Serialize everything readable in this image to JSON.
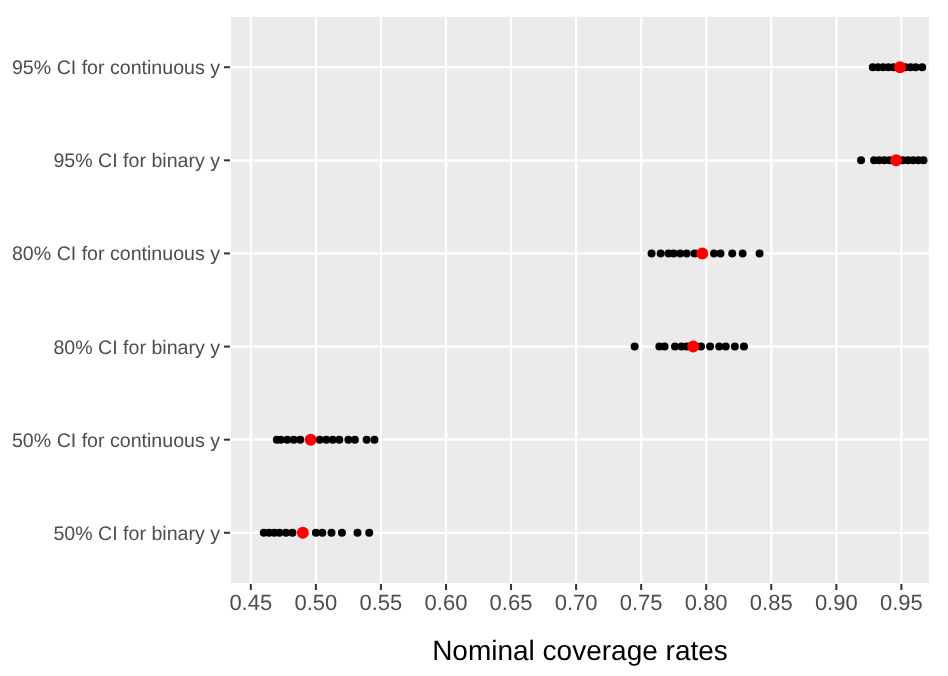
{
  "chart_data": {
    "type": "scatter",
    "orientation": "horizontal",
    "xlabel": "Nominal coverage rates",
    "categories": [
      "95% CI for continuous y",
      "95% CI for binary y",
      "80% CI for continuous y",
      "80% CI for binary y",
      "50% CI for continuous y",
      "50% CI for binary y"
    ],
    "series": [
      {
        "color": "#000000",
        "x": [
          "95% CI for continuous y",
          "95% CI for continuous y",
          "95% CI for continuous y",
          "95% CI for continuous y",
          "95% CI for continuous y",
          "95% CI for continuous y",
          "95% CI for continuous y",
          "95% CI for continuous y",
          "95% CI for continuous y",
          "95% CI for binary y",
          "95% CI for binary y",
          "95% CI for binary y",
          "95% CI for binary y",
          "95% CI for binary y",
          "95% CI for binary y",
          "95% CI for binary y",
          "95% CI for binary y",
          "95% CI for binary y",
          "95% CI for binary y",
          "80% CI for continuous y",
          "80% CI for continuous y",
          "80% CI for continuous y",
          "80% CI for continuous y",
          "80% CI for continuous y",
          "80% CI for continuous y",
          "80% CI for continuous y",
          "80% CI for continuous y",
          "80% CI for continuous y",
          "80% CI for continuous y",
          "80% CI for continuous y",
          "80% CI for continuous y",
          "80% CI for binary y",
          "80% CI for binary y",
          "80% CI for binary y",
          "80% CI for binary y",
          "80% CI for binary y",
          "80% CI for binary y",
          "80% CI for binary y",
          "80% CI for binary y",
          "80% CI for binary y",
          "80% CI for binary y",
          "80% CI for binary y",
          "80% CI for binary y",
          "50% CI for continuous y",
          "50% CI for continuous y",
          "50% CI for continuous y",
          "50% CI for continuous y",
          "50% CI for continuous y",
          "50% CI for continuous y",
          "50% CI for continuous y",
          "50% CI for continuous y",
          "50% CI for continuous y",
          "50% CI for continuous y",
          "50% CI for continuous y",
          "50% CI for continuous y",
          "50% CI for continuous y",
          "50% CI for binary y",
          "50% CI for binary y",
          "50% CI for binary y",
          "50% CI for binary y",
          "50% CI for binary y",
          "50% CI for binary y",
          "50% CI for binary y",
          "50% CI for binary y",
          "50% CI for binary y",
          "50% CI for binary y",
          "50% CI for binary y",
          "50% CI for binary y"
        ],
        "values": [
          0.928,
          0.932,
          0.936,
          0.94,
          0.944,
          0.953,
          0.957,
          0.961,
          0.966,
          0.919,
          0.929,
          0.933,
          0.937,
          0.941,
          0.951,
          0.955,
          0.959,
          0.963,
          0.967,
          0.758,
          0.765,
          0.771,
          0.775,
          0.78,
          0.785,
          0.791,
          0.806,
          0.811,
          0.82,
          0.828,
          0.841,
          0.745,
          0.764,
          0.768,
          0.776,
          0.781,
          0.785,
          0.796,
          0.803,
          0.81,
          0.815,
          0.822,
          0.829,
          0.47,
          0.473,
          0.478,
          0.483,
          0.488,
          0.503,
          0.508,
          0.513,
          0.518,
          0.525,
          0.53,
          0.539,
          0.545,
          0.46,
          0.464,
          0.468,
          0.472,
          0.477,
          0.482,
          0.5,
          0.505,
          0.512,
          0.52,
          0.532,
          0.541
        ]
      },
      {
        "color": "#ff0000",
        "x": [
          "95% CI for continuous y",
          "95% CI for binary y",
          "80% CI for continuous y",
          "80% CI for binary y",
          "50% CI for continuous y",
          "50% CI for binary y"
        ],
        "values": [
          0.949,
          0.946,
          0.797,
          0.79,
          0.496,
          0.49
        ]
      }
    ],
    "xlim": [
      0.434,
      0.972
    ],
    "xticks": [
      0.45,
      {
        "value": 0.5,
        "label": "0.50"
      },
      0.55,
      {
        "value": 0.6,
        "label": "0.60"
      },
      0.65,
      {
        "value": 0.7,
        "label": "0.70"
      },
      0.75,
      {
        "value": 0.8,
        "label": "0.80"
      },
      0.85,
      {
        "value": 0.9,
        "label": "0.90"
      },
      0.95
    ],
    "grid": true,
    "marker": "circle"
  }
}
